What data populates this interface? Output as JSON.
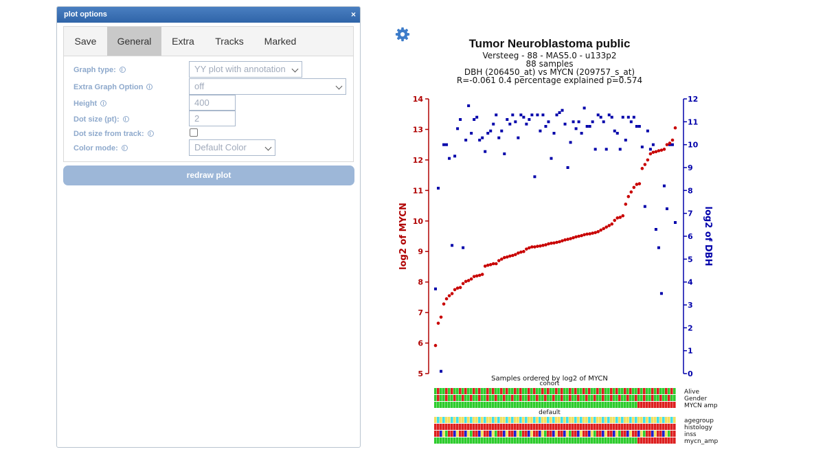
{
  "dialog": {
    "title": "plot options",
    "close": "×",
    "tabs": [
      "Save",
      "General",
      "Extra",
      "Tracks",
      "Marked"
    ],
    "active_tab": "General",
    "fields": {
      "graph_type": {
        "label": "Graph type:",
        "value": "YY plot with annotation"
      },
      "extra_option": {
        "label": "Extra Graph Option",
        "value": "off"
      },
      "height": {
        "label": "Height",
        "value": "400"
      },
      "dot_size": {
        "label": "Dot size (pt):",
        "value": "2"
      },
      "dot_size_track": {
        "label": "Dot size from track:",
        "checked": false
      },
      "color_mode": {
        "label": "Color mode:",
        "value": "Default Color"
      }
    },
    "redraw_label": "redraw plot"
  },
  "settings_icon": "gear-icon",
  "colors": {
    "accent": "#4a7fc1",
    "left_axis": "#b00000",
    "right_axis": "#0000aa",
    "red": "#dd2020",
    "green": "#2ecc2e",
    "yellow": "#f0e060",
    "cyan": "#40e0e8",
    "blue": "#2020cc"
  },
  "chart_data": {
    "type": "scatter",
    "title": "Tumor Neuroblastoma public",
    "subtitle_lines": [
      "Versteeg - 88 - MAS5.0 - u133p2",
      "88 samples",
      "DBH (206450_at) vs MYCN (209757_s_at)",
      "R=-0.061 0.4 percentage explained p=0.574"
    ],
    "xlabel": "Samples ordered by log2 of MYCN",
    "y_left_label": "log2 of MYCN",
    "y_right_label": "log2 of DBH",
    "y_left_lim": [
      5,
      14
    ],
    "y_right_lim": [
      0,
      12
    ],
    "y_left_ticks": [
      5,
      6,
      7,
      8,
      9,
      10,
      11,
      12,
      13,
      14
    ],
    "y_right_ticks": [
      0,
      1,
      2,
      3,
      4,
      5,
      6,
      7,
      8,
      9,
      10,
      11,
      12
    ],
    "grid": false,
    "series": [
      {
        "name": "log2 of MYCN",
        "axis": "left",
        "color": "#c80000",
        "values": [
          5.92,
          6.65,
          6.85,
          7.28,
          7.45,
          7.55,
          7.62,
          7.75,
          7.8,
          7.82,
          7.95,
          8.02,
          8.05,
          8.1,
          8.18,
          8.2,
          8.22,
          8.25,
          8.52,
          8.55,
          8.57,
          8.6,
          8.6,
          8.7,
          8.75,
          8.8,
          8.82,
          8.85,
          8.87,
          8.9,
          8.95,
          8.98,
          9.0,
          9.08,
          9.12,
          9.15,
          9.15,
          9.17,
          9.18,
          9.2,
          9.22,
          9.25,
          9.27,
          9.28,
          9.3,
          9.32,
          9.35,
          9.38,
          9.4,
          9.42,
          9.45,
          9.48,
          9.5,
          9.52,
          9.55,
          9.57,
          9.58,
          9.6,
          9.62,
          9.65,
          9.7,
          9.75,
          9.8,
          9.85,
          9.9,
          10.02,
          10.1,
          10.12,
          10.17,
          10.55,
          10.8,
          10.95,
          11.1,
          11.2,
          11.22,
          11.72,
          11.85,
          12.0,
          12.2,
          12.25,
          12.27,
          12.3,
          12.32,
          12.35,
          12.5,
          12.55,
          12.65,
          13.05
        ]
      },
      {
        "name": "log2 of DBH",
        "axis": "right",
        "color": "#0000aa",
        "values": [
          3.7,
          8.1,
          0.1,
          10.0,
          10.0,
          9.4,
          5.6,
          9.5,
          10.7,
          11.1,
          5.5,
          10.2,
          11.7,
          10.5,
          11.1,
          11.2,
          10.2,
          10.3,
          9.7,
          10.5,
          10.6,
          10.9,
          11.3,
          10.3,
          10.6,
          9.6,
          11.1,
          10.9,
          11.3,
          11.0,
          10.3,
          11.3,
          11.2,
          10.9,
          11.1,
          11.3,
          8.6,
          11.3,
          10.6,
          11.3,
          10.8,
          11.0,
          9.4,
          10.5,
          11.3,
          11.4,
          11.5,
          10.9,
          9.0,
          10.1,
          11.0,
          10.7,
          11.0,
          10.5,
          11.6,
          10.8,
          10.8,
          11.0,
          9.8,
          11.3,
          11.2,
          11.0,
          9.8,
          11.3,
          11.2,
          10.6,
          10.5,
          9.8,
          11.2,
          10.2,
          11.2,
          11.0,
          11.2,
          10.8,
          10.8,
          9.9,
          7.3,
          10.6,
          9.8,
          10.0,
          6.3,
          5.5,
          3.5,
          8.2,
          7.2,
          10.0,
          10.0,
          6.6
        ]
      }
    ],
    "tracks": {
      "groups": [
        {
          "header": "cohort",
          "rows": [
            "Alive",
            "Gender",
            "MYCN amp"
          ]
        },
        {
          "header": "default",
          "rows": [
            "agegroup",
            "histology",
            "inss",
            "mycn_amp"
          ]
        }
      ]
    }
  }
}
